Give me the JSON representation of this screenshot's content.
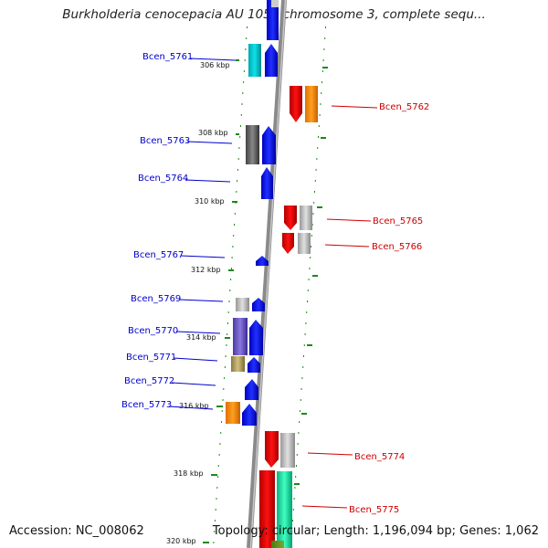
{
  "title": "Burkholderia cenocepacia AU 1054 chromosome 3, complete sequ...",
  "footer": {
    "accession": "Accession: NC_008062",
    "summary": "Topology: circular; Length: 1,196,094 bp; Genes: 1,062"
  },
  "ticks": [
    "306 kbp",
    "308 kbp",
    "310 kbp",
    "312 kbp",
    "314 kbp",
    "316 kbp",
    "318 kbp",
    "320 kbp"
  ],
  "genes": [
    {
      "label": "Bcen_5761",
      "strand": "forward",
      "color": "#0000cc"
    },
    {
      "label": "Bcen_5762",
      "strand": "reverse",
      "color": "#cc0000"
    },
    {
      "label": "Bcen_5763",
      "strand": "forward",
      "color": "#0000cc"
    },
    {
      "label": "Bcen_5764",
      "strand": "forward",
      "color": "#0000cc"
    },
    {
      "label": "Bcen_5765",
      "strand": "reverse",
      "color": "#cc0000"
    },
    {
      "label": "Bcen_5766",
      "strand": "reverse",
      "color": "#cc0000"
    },
    {
      "label": "Bcen_5767",
      "strand": "forward",
      "color": "#0000cc"
    },
    {
      "label": "Bcen_5769",
      "strand": "forward",
      "color": "#0000cc"
    },
    {
      "label": "Bcen_5770",
      "strand": "forward",
      "color": "#0000cc"
    },
    {
      "label": "Bcen_5771",
      "strand": "forward",
      "color": "#0000cc"
    },
    {
      "label": "Bcen_5772",
      "strand": "forward",
      "color": "#0000cc"
    },
    {
      "label": "Bcen_5773",
      "strand": "forward",
      "color": "#0000cc"
    },
    {
      "label": "Bcen_5774",
      "strand": "reverse",
      "color": "#cc0000"
    },
    {
      "label": "Bcen_5775",
      "strand": "reverse",
      "color": "#cc0000"
    }
  ],
  "colors": {
    "forward_gene": "#0000ff",
    "reverse_gene": "#ee0000",
    "backbone": "#8c8c8c",
    "gc_dots": "#1a8a1a"
  }
}
